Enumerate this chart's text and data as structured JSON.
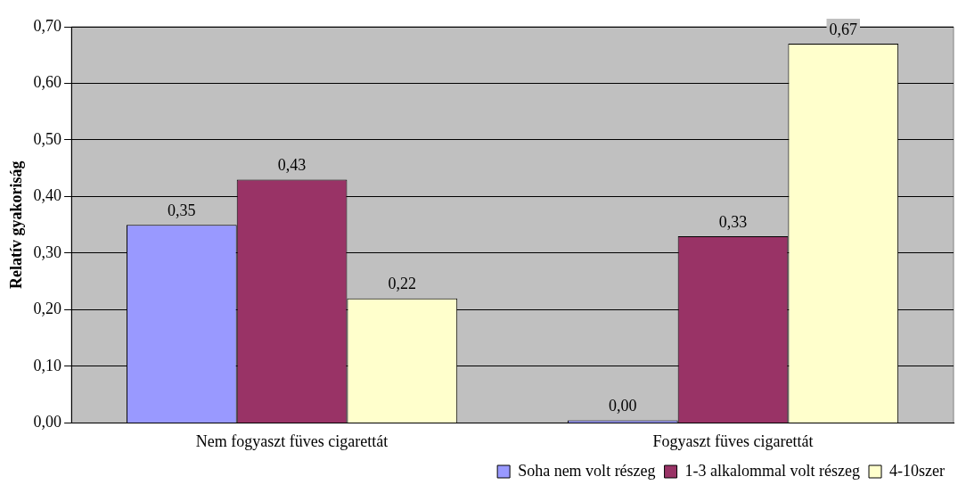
{
  "chart_data": {
    "type": "bar",
    "ylabel": "Relatív gyakoriság",
    "categories": [
      "Nem fogyaszt füves cigarettát",
      "Fogyaszt füves cigarettát"
    ],
    "series": [
      {
        "name": "Soha nem volt részeg",
        "color": "#9999ff",
        "values": [
          0.35,
          0.0
        ],
        "value_labels": [
          "0,35",
          "0,00"
        ]
      },
      {
        "name": "1-3 alkalommal volt részeg",
        "color": "#993366",
        "values": [
          0.43,
          0.33
        ],
        "value_labels": [
          "0,43",
          "0,33"
        ]
      },
      {
        "name": "4-10szer",
        "color": "#ffffcc",
        "values": [
          0.22,
          0.67
        ],
        "value_labels": [
          "0,22",
          "0,67"
        ]
      }
    ],
    "ylim": [
      0,
      0.7
    ],
    "yticks": [
      {
        "value": 0,
        "label": "0,00"
      },
      {
        "value": 0.1,
        "label": "0,10"
      },
      {
        "value": 0.2,
        "label": "0,20"
      },
      {
        "value": 0.3,
        "label": "0,30"
      },
      {
        "value": 0.4,
        "label": "0,40"
      },
      {
        "value": 0.5,
        "label": "0,50"
      },
      {
        "value": 0.6,
        "label": "0,60"
      },
      {
        "value": 0.7,
        "label": "0,70"
      }
    ],
    "grid": "y",
    "legend": "bottom right"
  }
}
